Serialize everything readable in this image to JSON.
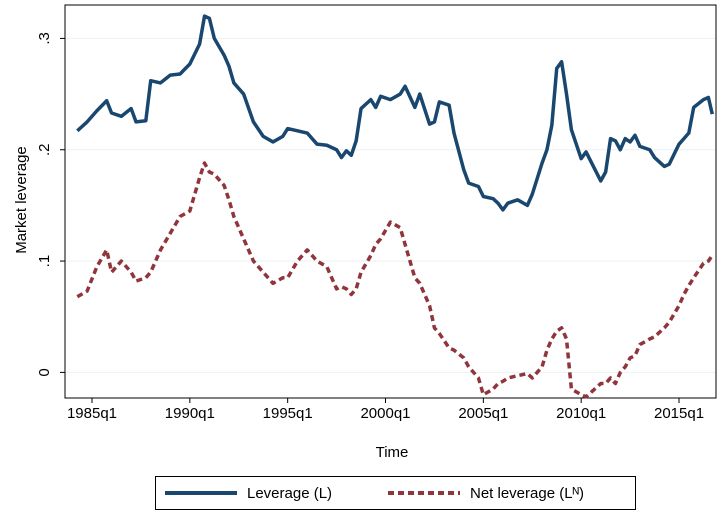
{
  "chart_data": {
    "type": "line",
    "ylabel": "Market leverage",
    "xlabel": "Time",
    "x": [
      1984.25,
      1984.75,
      1985.25,
      1985.75,
      1986.0,
      1986.5,
      1987.0,
      1987.25,
      1987.75,
      1988.0,
      1988.5,
      1989.0,
      1989.5,
      1990.0,
      1990.5,
      1990.75,
      1991.0,
      1991.25,
      1991.75,
      1992.0,
      1992.25,
      1992.75,
      1993.25,
      1993.75,
      1994.25,
      1994.75,
      1995.0,
      1995.5,
      1996.0,
      1996.5,
      1997.0,
      1997.5,
      1997.75,
      1998.0,
      1998.25,
      1998.5,
      1998.75,
      1999.25,
      1999.5,
      1999.75,
      2000.25,
      2000.75,
      2001.0,
      2001.5,
      2001.75,
      2002.25,
      2002.5,
      2002.75,
      2003.25,
      2003.5,
      2004.0,
      2004.25,
      2004.75,
      2005.0,
      2005.5,
      2005.75,
      2006.0,
      2006.25,
      2006.75,
      2007.25,
      2007.5,
      2008.0,
      2008.25,
      2008.5,
      2008.75,
      2009.0,
      2009.25,
      2009.5,
      2010.0,
      2010.25,
      2011.0,
      2011.25,
      2011.5,
      2011.75,
      2012.0,
      2012.25,
      2012.5,
      2012.75,
      2013.0,
      2013.5,
      2013.75,
      2014.25,
      2014.5,
      2015.0,
      2015.25,
      2015.5,
      2015.75,
      2016.25,
      2016.5,
      2016.7
    ],
    "series": [
      {
        "name": "Leverage (L)",
        "color": "#1a476f",
        "dash": false,
        "values": [
          0.217,
          0.225,
          0.235,
          0.244,
          0.233,
          0.23,
          0.237,
          0.225,
          0.226,
          0.262,
          0.26,
          0.267,
          0.268,
          0.277,
          0.295,
          0.32,
          0.318,
          0.3,
          0.285,
          0.275,
          0.26,
          0.25,
          0.225,
          0.212,
          0.207,
          0.212,
          0.219,
          0.217,
          0.215,
          0.205,
          0.204,
          0.2,
          0.193,
          0.199,
          0.195,
          0.208,
          0.237,
          0.245,
          0.238,
          0.248,
          0.245,
          0.25,
          0.257,
          0.238,
          0.25,
          0.223,
          0.225,
          0.243,
          0.24,
          0.215,
          0.182,
          0.17,
          0.167,
          0.158,
          0.156,
          0.152,
          0.146,
          0.152,
          0.155,
          0.15,
          0.16,
          0.188,
          0.2,
          0.222,
          0.273,
          0.279,
          0.25,
          0.218,
          0.192,
          0.198,
          0.172,
          0.18,
          0.21,
          0.208,
          0.2,
          0.21,
          0.207,
          0.213,
          0.203,
          0.2,
          0.193,
          0.185,
          0.187,
          0.205,
          0.21,
          0.215,
          0.238,
          0.245,
          0.247,
          0.232
        ]
      },
      {
        "name": "Net leverage (Lᴺ)",
        "color": "#90353b",
        "dash": true,
        "values": [
          0.068,
          0.073,
          0.095,
          0.11,
          0.09,
          0.1,
          0.09,
          0.082,
          0.085,
          0.09,
          0.11,
          0.125,
          0.14,
          0.145,
          0.175,
          0.188,
          0.18,
          0.178,
          0.168,
          0.155,
          0.14,
          0.12,
          0.1,
          0.09,
          0.08,
          0.085,
          0.085,
          0.1,
          0.11,
          0.1,
          0.095,
          0.075,
          0.077,
          0.075,
          0.07,
          0.075,
          0.09,
          0.105,
          0.115,
          0.12,
          0.135,
          0.13,
          0.115,
          0.085,
          0.08,
          0.06,
          0.04,
          0.035,
          0.022,
          0.02,
          0.013,
          0.005,
          -0.005,
          -0.02,
          -0.015,
          -0.01,
          -0.008,
          -0.005,
          -0.003,
          -0.001,
          -0.005,
          0.005,
          0.02,
          0.03,
          0.037,
          0.04,
          0.03,
          -0.015,
          -0.02,
          -0.022,
          -0.01,
          -0.01,
          -0.005,
          -0.01,
          0.0,
          0.005,
          0.013,
          0.015,
          0.025,
          0.03,
          0.032,
          0.04,
          0.045,
          0.06,
          0.07,
          0.078,
          0.085,
          0.098,
          0.1,
          0.105
        ]
      }
    ],
    "xlim": [
      1983.62,
      2016.89
    ],
    "xticks": [
      {
        "value": 1985,
        "label": "1985q1"
      },
      {
        "value": 1990,
        "label": "1990q1"
      },
      {
        "value": 1995,
        "label": "1995q1"
      },
      {
        "value": 2000,
        "label": "2000q1"
      },
      {
        "value": 2005,
        "label": "2005q1"
      },
      {
        "value": 2010,
        "label": "2010q1"
      },
      {
        "value": 2015,
        "label": "2015q1"
      }
    ],
    "ylim": [
      -0.023,
      0.33
    ],
    "yticks": [
      0,
      {
        "value": 0.1,
        "label": ".1"
      },
      {
        "value": 0.2,
        "label": ".2"
      },
      {
        "value": 0.3,
        "label": ".3"
      }
    ],
    "grid": true,
    "legend": "bottom"
  }
}
